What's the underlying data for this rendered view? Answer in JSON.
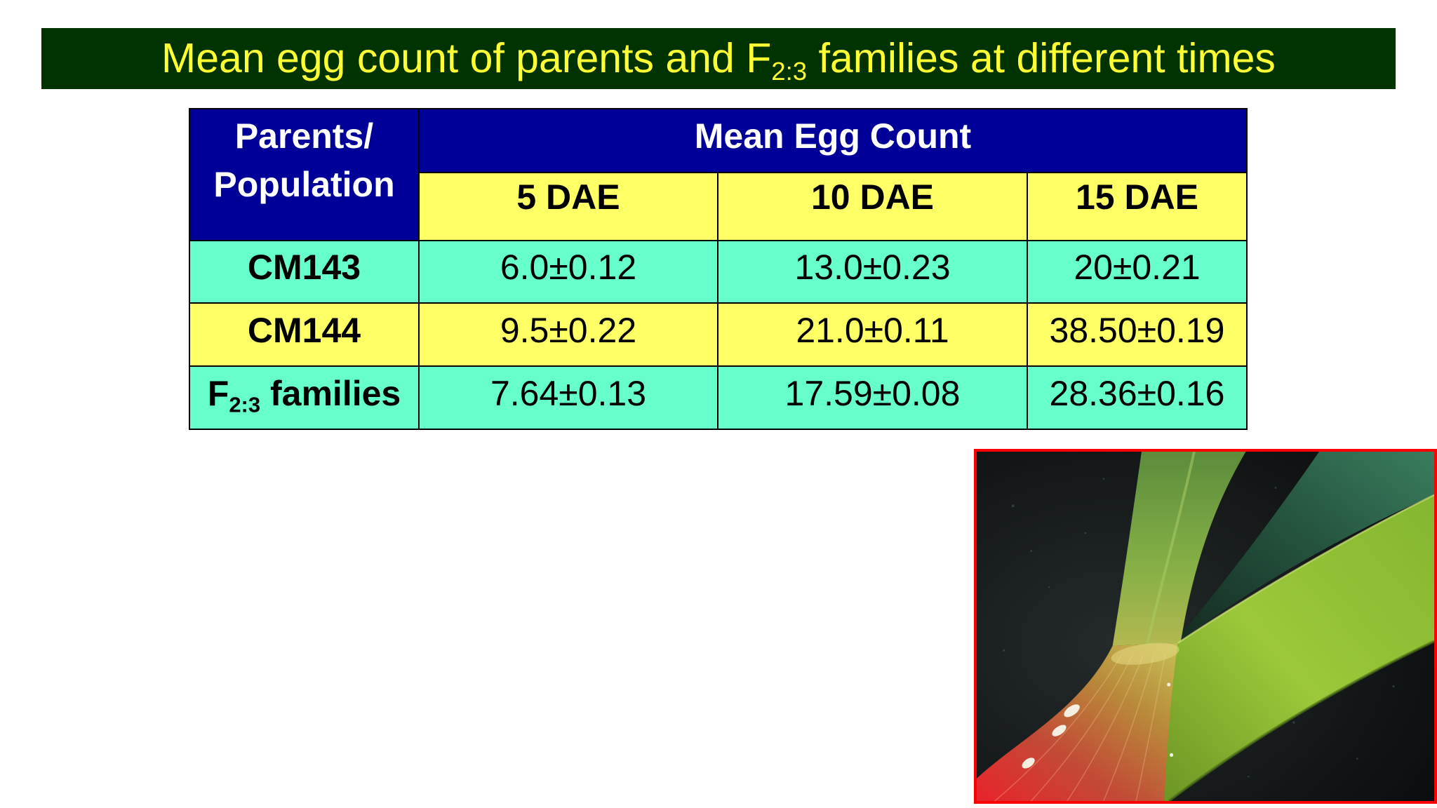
{
  "slide": {
    "title": {
      "text_before": "Mean egg count of parents and F",
      "subscript": "2:3",
      "text_after": " families at different times"
    }
  },
  "table": {
    "corner_header": [
      "Parents/",
      "Population"
    ],
    "group_header": "Mean Egg Count",
    "columns": [
      "5 DAE",
      "10 DAE",
      "15 DAE"
    ],
    "rows": [
      {
        "label": "CM143",
        "values": [
          "6.0±0.12",
          "13.0±0.23",
          "20±0.21"
        ],
        "bg": "#66ffcc"
      },
      {
        "label": "CM144",
        "values": [
          "9.5±0.22",
          "21.0±0.11",
          "38.50±0.19"
        ],
        "bg": "#ffff66"
      },
      {
        "label": "F",
        "label_subscript": "2:3",
        "label_after": " families",
        "values": [
          "7.64±0.13",
          "17.59±0.08",
          "28.36±0.16"
        ],
        "bg": "#66ffcc"
      }
    ]
  },
  "colors": {
    "title_bar": "#003300",
    "title_text": "#ffff33",
    "header_bg": "#000099",
    "header_text": "#ffffff",
    "subheader_bg": "#ffff66",
    "grid_lines": "#000000",
    "photo_border": "#ff0000"
  }
}
